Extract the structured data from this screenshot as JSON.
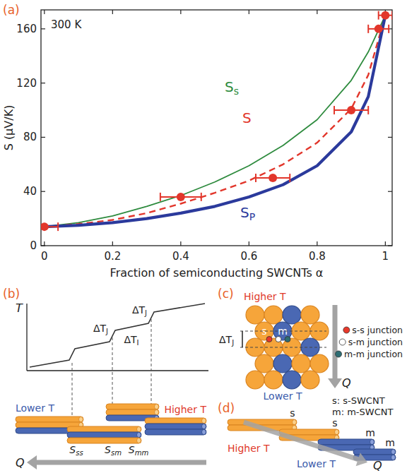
{
  "chart_data": {
    "type": "line",
    "panel_label": "(a)",
    "annotations": [
      "300 K"
    ],
    "x_label": "Fraction of semiconducting SWCNTs α",
    "y_label": "S (µV/K)",
    "x": [
      0,
      0.1,
      0.2,
      0.3,
      0.4,
      0.5,
      0.6,
      0.7,
      0.8,
      0.9,
      0.95,
      1
    ],
    "series": [
      {
        "name": "Ss",
        "color": "#2e8b3e",
        "line_style": "solid",
        "values": [
          14,
          17,
          22,
          29,
          37,
          47,
          59,
          74,
          93,
          122,
          143,
          170
        ]
      },
      {
        "name": "S",
        "color": "#e2362b",
        "line_style": "dashed",
        "values": [
          14,
          16,
          19,
          24,
          31,
          39,
          48,
          60,
          76,
          101,
          126,
          170
        ]
      },
      {
        "name": "SP",
        "color": "#2b3a9c",
        "line_style": "solid",
        "values": [
          14,
          15,
          17,
          20,
          24,
          29,
          36,
          45,
          59,
          84,
          110,
          170
        ]
      },
      {
        "type": "scatter",
        "marker": "circle",
        "color": "#e2362b",
        "x": [
          0,
          0.4,
          0.67,
          0.9,
          0.98,
          1
        ],
        "values": [
          14,
          36,
          50,
          100,
          160,
          170
        ],
        "x_error": [
          0.04,
          0.06,
          0.05,
          0.05,
          0.03,
          0.02
        ]
      }
    ],
    "xlim": [
      -0.01,
      1.02
    ],
    "ylim": [
      0,
      174
    ],
    "xticks": [
      0,
      0.2,
      0.4,
      0.6,
      0.8,
      1
    ],
    "yticks": [
      0,
      40,
      80,
      120,
      160
    ],
    "grid": false
  },
  "diagrams": {
    "b": {
      "panel_label": "(b)",
      "axis_label": "T",
      "junction_drops": [
        {
          "base": "ΔT",
          "sub": "J"
        },
        {
          "base": "ΔT",
          "sub": "J"
        }
      ],
      "internal_drop": {
        "base": "ΔT",
        "sub": "I"
      },
      "cold_end": "Lower T",
      "hot_end": "Higher T",
      "seebeck_terms": [
        {
          "base": "S",
          "sub": "ss"
        },
        {
          "base": "S",
          "sub": "sm"
        },
        {
          "base": "S",
          "sub": "mm"
        }
      ],
      "heat_flow": "Q"
    },
    "c": {
      "panel_label": "(c)",
      "hot_end": "Higher T",
      "cold_end": "Lower T",
      "tube_labels": [
        "s",
        "m"
      ],
      "junction_drop": {
        "base": "ΔT",
        "sub": "J"
      },
      "heat_flow": "Q",
      "legend": [
        {
          "text": "s-s junction",
          "color": "#e8392b"
        },
        {
          "text": "s-m junction",
          "color": "#ffffff"
        },
        {
          "text": "m-m junction",
          "color": "#2d6d73"
        }
      ]
    },
    "d": {
      "panel_label": "(d)",
      "key": [
        "s: s-SWCNT",
        "m: m-SWCNT"
      ],
      "tube_labels": [
        "s",
        "s",
        "m",
        "m"
      ],
      "hot_end": "Higher T",
      "cold_end": "Lower T",
      "heat_flow": "Q"
    }
  }
}
